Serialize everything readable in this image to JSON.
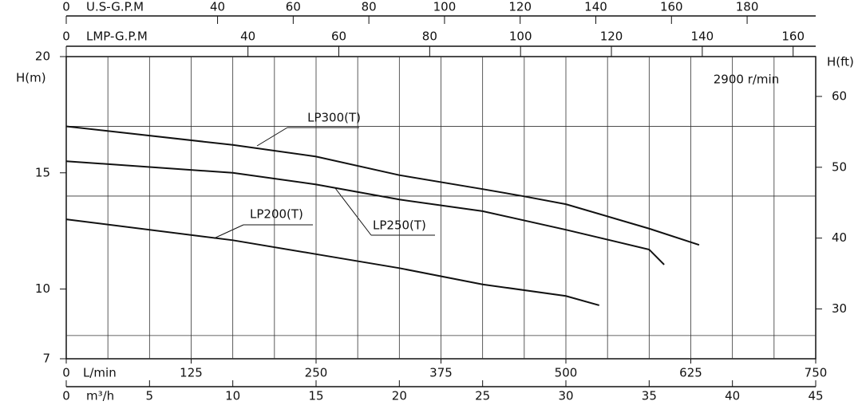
{
  "chart_data": {
    "type": "line",
    "annotation": "2900 r/min",
    "xlabel": "m³/h",
    "xlim": [
      0,
      45
    ],
    "xticks": [
      0,
      5,
      10,
      15,
      20,
      25,
      30,
      35,
      40,
      45
    ],
    "x_lmin": {
      "label": "L/min",
      "lim": [
        0,
        750
      ],
      "ticks": [
        0,
        125,
        250,
        375,
        500,
        625,
        750
      ]
    },
    "x_usgpm": {
      "label": "U.S-G.P.M",
      "lim": [
        0,
        198.13
      ],
      "ticks": [
        0,
        40,
        60,
        80,
        100,
        120,
        140,
        160,
        180
      ]
    },
    "x_impgpm": {
      "label": "LMP-G.P.M",
      "lim": [
        0,
        164.97
      ],
      "ticks": [
        0,
        40,
        60,
        80,
        100,
        120,
        140,
        160
      ]
    },
    "ylabel": "H(m)",
    "ylim": [
      7,
      20
    ],
    "yticks": [
      7,
      10,
      15,
      20
    ],
    "y2label": "H(ft)",
    "y2lim": [
      22.97,
      65.62
    ],
    "y2ticks": [
      30,
      40,
      50,
      60
    ],
    "grid_x": [
      2.5,
      5,
      7.5,
      10,
      12.5,
      15,
      17.5,
      20,
      22.5,
      25,
      27.5,
      30,
      32.5,
      35,
      37.5,
      40,
      42.5
    ],
    "grid_y": [
      8,
      14,
      17
    ],
    "series": [
      {
        "name": "LP300(T)",
        "color": "#111111",
        "x": [
          0,
          10,
          15,
          20,
          25,
          27.4,
          30,
          35,
          38
        ],
        "values": [
          17.0,
          16.2,
          15.7,
          14.9,
          14.3,
          14.0,
          13.65,
          12.6,
          11.9
        ]
      },
      {
        "name": "LP250(T)",
        "color": "#111111",
        "x": [
          0,
          10,
          15,
          20,
          25,
          30,
          35,
          35.9
        ],
        "values": [
          15.5,
          15.0,
          14.5,
          13.85,
          13.35,
          12.55,
          11.7,
          11.05
        ]
      },
      {
        "name": "LP200(T)",
        "color": "#111111",
        "x": [
          0,
          10,
          15,
          20,
          25,
          30,
          32
        ],
        "values": [
          13.0,
          12.1,
          11.5,
          10.9,
          10.2,
          9.7,
          9.3
        ]
      }
    ]
  }
}
